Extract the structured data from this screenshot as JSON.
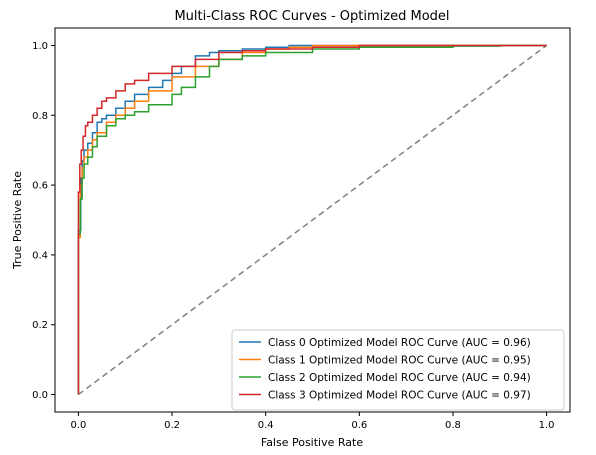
{
  "chart_data": {
    "type": "line",
    "title": "Multi-Class ROC Curves - Optimized Model",
    "xlabel": "False Positive Rate",
    "ylabel": "True Positive Rate",
    "xlim": [
      -0.05,
      1.05
    ],
    "ylim": [
      -0.05,
      1.05
    ],
    "xticks": [
      0.0,
      0.2,
      0.4,
      0.6,
      0.8,
      1.0
    ],
    "yticks": [
      0.0,
      0.2,
      0.4,
      0.6,
      0.8,
      1.0
    ],
    "xtick_labels": [
      "0.0",
      "0.2",
      "0.4",
      "0.6",
      "0.8",
      "1.0"
    ],
    "ytick_labels": [
      "0.0",
      "0.2",
      "0.4",
      "0.6",
      "0.8",
      "1.0"
    ],
    "grid": false,
    "legend_position": "lower-right",
    "series": [
      {
        "name": "Class 0 Optimized Model ROC Curve (AUC = 0.96)",
        "color": "#1f77b4",
        "x": [
          0.0,
          0.0,
          0.005,
          0.008,
          0.012,
          0.02,
          0.03,
          0.04,
          0.05,
          0.06,
          0.08,
          0.1,
          0.12,
          0.15,
          0.18,
          0.2,
          0.22,
          0.25,
          0.28,
          0.3,
          0.35,
          0.4,
          0.45,
          0.5,
          0.6,
          0.7,
          0.8,
          0.9,
          1.0
        ],
        "y": [
          0.0,
          0.47,
          0.62,
          0.67,
          0.7,
          0.72,
          0.75,
          0.78,
          0.79,
          0.8,
          0.82,
          0.84,
          0.86,
          0.88,
          0.9,
          0.92,
          0.94,
          0.97,
          0.98,
          0.985,
          0.99,
          0.995,
          1.0,
          1.0,
          1.0,
          1.0,
          1.0,
          1.0,
          1.0
        ]
      },
      {
        "name": "Class 1 Optimized Model ROC Curve (AUC = 0.95)",
        "color": "#ff7f0e",
        "x": [
          0.0,
          0.0,
          0.004,
          0.008,
          0.012,
          0.02,
          0.03,
          0.04,
          0.06,
          0.08,
          0.1,
          0.12,
          0.15,
          0.2,
          0.25,
          0.3,
          0.35,
          0.4,
          0.45,
          0.5,
          0.6,
          0.7,
          0.8,
          0.9,
          1.0
        ],
        "y": [
          0.0,
          0.45,
          0.6,
          0.65,
          0.68,
          0.7,
          0.73,
          0.75,
          0.78,
          0.8,
          0.82,
          0.84,
          0.87,
          0.91,
          0.94,
          0.96,
          0.98,
          0.99,
          0.995,
          1.0,
          1.0,
          1.0,
          1.0,
          1.0,
          1.0
        ]
      },
      {
        "name": "Class 2 Optimized Model ROC Curve (AUC = 0.94)",
        "color": "#2ca02c",
        "x": [
          0.0,
          0.0,
          0.004,
          0.008,
          0.012,
          0.02,
          0.03,
          0.04,
          0.06,
          0.08,
          0.1,
          0.12,
          0.15,
          0.2,
          0.22,
          0.25,
          0.28,
          0.3,
          0.35,
          0.4,
          0.5,
          0.6,
          0.7,
          0.8,
          0.9,
          0.95,
          1.0
        ],
        "y": [
          0.0,
          0.46,
          0.56,
          0.62,
          0.66,
          0.68,
          0.71,
          0.74,
          0.77,
          0.79,
          0.8,
          0.81,
          0.83,
          0.86,
          0.88,
          0.91,
          0.94,
          0.96,
          0.97,
          0.98,
          0.99,
          0.995,
          0.995,
          0.998,
          1.0,
          1.0,
          1.0
        ]
      },
      {
        "name": "Class 3 Optimized Model ROC Curve (AUC = 0.97)",
        "color": "#d62728",
        "x": [
          0.0,
          0.0,
          0.003,
          0.006,
          0.01,
          0.015,
          0.02,
          0.03,
          0.04,
          0.05,
          0.06,
          0.08,
          0.1,
          0.12,
          0.15,
          0.2,
          0.25,
          0.3,
          0.35,
          0.4,
          0.5,
          0.6,
          0.7,
          0.8,
          0.9,
          1.0
        ],
        "y": [
          0.0,
          0.58,
          0.66,
          0.7,
          0.74,
          0.77,
          0.78,
          0.8,
          0.82,
          0.84,
          0.85,
          0.87,
          0.89,
          0.9,
          0.92,
          0.94,
          0.96,
          0.98,
          0.985,
          0.99,
          0.995,
          1.0,
          1.0,
          1.0,
          1.0,
          1.0
        ]
      }
    ],
    "reference_line": {
      "x": [
        0.0,
        1.0
      ],
      "y": [
        0.0,
        1.0
      ],
      "color": "#808080",
      "style": "dashed"
    }
  }
}
